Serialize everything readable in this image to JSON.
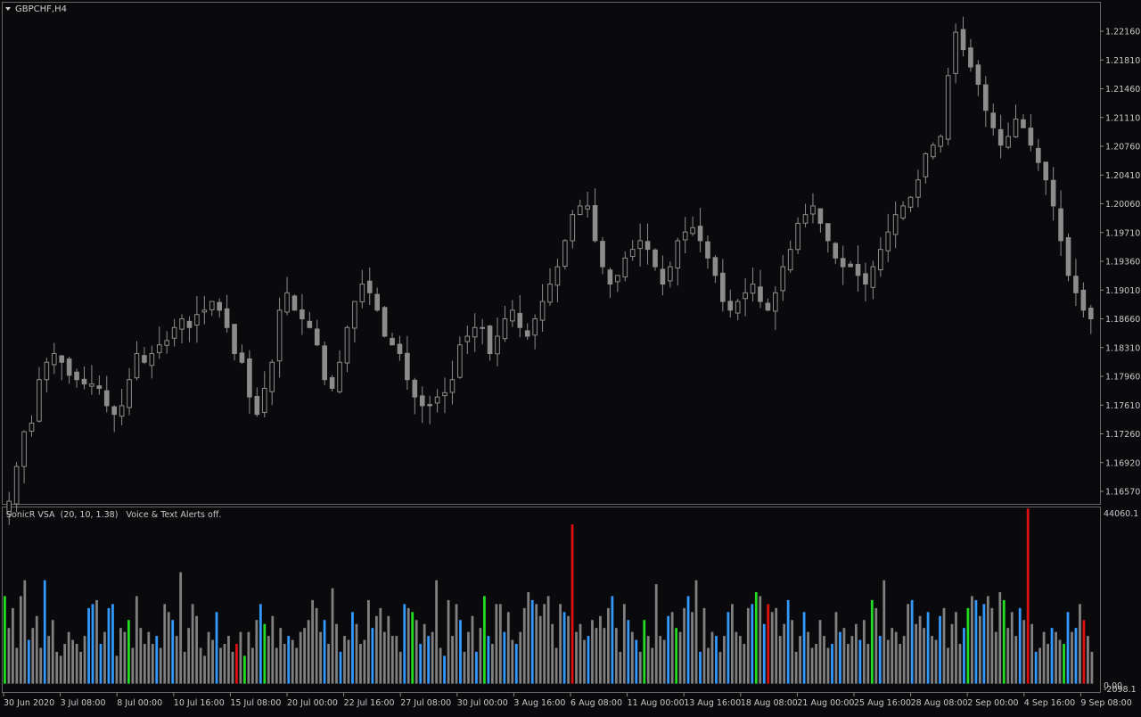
{
  "main_panel": {
    "symbol_label": "GBPCHF,H4",
    "price_ticks": [
      "1.22160",
      "1.21810",
      "1.21460",
      "1.21110",
      "1.20760",
      "1.20410",
      "1.20060",
      "1.19710",
      "1.19360",
      "1.19010",
      "1.18660",
      "1.18310",
      "1.17960",
      "1.17610",
      "1.17260",
      "1.16920",
      "1.16570"
    ]
  },
  "sub_panel": {
    "indicator_label": "SonicR VSA  (20, 10, 1.38)   Voice & Text Alerts off.",
    "max_label": "44060.1",
    "min_label": "0.00",
    "min_label_overlap": "-2098.1"
  },
  "time_axis_labels": [
    "30 Jun 2020",
    "3 Jul 08:00",
    "8 Jul 00:00",
    "10 Jul 16:00",
    "15 Jul 08:00",
    "20 Jul 00:00",
    "22 Jul 16:00",
    "27 Jul 08:00",
    "30 Jul 00:00",
    "3 Aug 16:00",
    "6 Aug 08:00",
    "11 Aug 00:00",
    "13 Aug 16:00",
    "18 Aug 08:00",
    "21 Aug 00:00",
    "25 Aug 16:00",
    "28 Aug 08:00",
    "2 Sep 00:00",
    "4 Sep 16:00",
    "9 Sep 08:00"
  ],
  "colors": {
    "background": "#0a0a0d",
    "grid": "#555555",
    "candle": "#8c8c8c",
    "text": "#c8c8c8",
    "vsa_neutral": "#808080",
    "vsa_blue": "#3399ff",
    "vsa_green": "#22dd22",
    "vsa_red": "#e01010"
  },
  "chart_data": [
    {
      "type": "line",
      "series": [
        {
          "name": "GBPCHF,H4",
          "values": [
            1.166,
            1.17,
            1.174,
            1.175,
            1.18,
            1.182,
            1.183,
            1.182,
            1.1805,
            1.18,
            1.1795,
            1.1795,
            1.179,
            1.177,
            1.176,
            1.177,
            1.18,
            1.183,
            1.182,
            1.183,
            1.184,
            1.1845,
            1.186,
            1.187,
            1.186,
            1.1875,
            1.188,
            1.189,
            1.188,
            1.186,
            1.183,
            1.182,
            1.178,
            1.176,
            1.179,
            1.182,
            1.188,
            1.19,
            1.188,
            1.187,
            1.186,
            1.184,
            1.18,
            1.179,
            1.182,
            1.186,
            1.189,
            1.191,
            1.19,
            1.188,
            1.185,
            1.184,
            1.183,
            1.18,
            1.178,
            1.177,
            1.177,
            1.178,
            1.1785,
            1.18,
            1.184,
            1.185,
            1.186,
            1.186,
            1.183,
            1.185,
            1.187,
            1.188,
            1.186,
            1.185,
            1.187,
            1.189,
            1.191,
            1.193,
            1.196,
            1.199,
            1.2,
            1.2,
            1.196,
            1.193,
            1.191,
            1.192,
            1.194,
            1.195,
            1.196,
            1.195,
            1.193,
            1.191,
            1.193,
            1.196,
            1.197,
            1.1975,
            1.196,
            1.194,
            1.192,
            1.189,
            1.188,
            1.189,
            1.19,
            1.191,
            1.189,
            1.188,
            1.19,
            1.193,
            1.195,
            1.198,
            1.199,
            1.2,
            1.198,
            1.196,
            1.194,
            1.193,
            1.193,
            1.192,
            1.191,
            1.193,
            1.195,
            1.197,
            1.199,
            1.2,
            1.201,
            1.203,
            1.206,
            1.207,
            1.208,
            1.215,
            1.22,
            1.218,
            1.216,
            1.214,
            1.211,
            1.209,
            1.207,
            1.208,
            1.21,
            1.209,
            1.207,
            1.205,
            1.203,
            1.2,
            1.196,
            1.192,
            1.19,
            1.188,
            1.187
          ]
        }
      ],
      "ylim": [
        1.1657,
        1.2234
      ]
    },
    {
      "type": "bar",
      "title": "SonicR VSA  (20, 10, 1.38)   Voice & Text Alerts off.",
      "ylim": [
        -2098.1,
        44060.1
      ],
      "series": [
        {
          "name": "SonicR VSA",
          "values": [
            22000,
            14000,
            19000,
            9000,
            22000,
            26000,
            11000,
            14000,
            17000,
            9000,
            26000,
            12000,
            16000,
            8000,
            7000,
            10000,
            13000,
            11000,
            10000,
            8000,
            12000,
            19000,
            20000,
            21000,
            10000,
            13000,
            19000,
            20000,
            7000,
            14000,
            13000,
            16000,
            9000,
            22000,
            14000,
            10000,
            13000,
            10000,
            12000,
            9000,
            20000,
            18000,
            16000,
            12000,
            28000,
            8000,
            14000,
            20000,
            17000,
            9000,
            7000,
            13000,
            11000,
            18000,
            9000,
            10000,
            12000,
            8000,
            10000,
            13000,
            7000,
            13000,
            9000,
            16000,
            20000,
            15000,
            12000,
            17000,
            9000,
            14000,
            10000,
            12000,
            11000,
            9000,
            13000,
            14000,
            16000,
            21000,
            19000,
            13000,
            16000,
            10000,
            24000,
            15000,
            8000,
            12000,
            11000,
            18000,
            15000,
            10000,
            11000,
            21000,
            14000,
            17000,
            19000,
            13000,
            17000,
            12000,
            12000,
            8000,
            20000,
            19000,
            18000,
            16000,
            10000,
            15000,
            12000,
            13000,
            26000,
            9000,
            7000,
            21000,
            12000,
            20000,
            16000,
            8000,
            13000,
            17000,
            8000,
            14000,
            22000,
            12000,
            10000,
            20000,
            20000,
            13000,
            18000,
            11000,
            10000,
            13000,
            19000,
            23000,
            21000,
            20000,
            17000,
            20000,
            22000,
            15000,
            9000,
            20000,
            18000,
            17000,
            10000,
            13000,
            15000,
            11000,
            12000,
            16000,
            14000,
            17000,
            14000,
            19000,
            22000,
            14000,
            8000,
            20000,
            16000,
            13000,
            11000,
            8000,
            16000,
            12000,
            9000,
            25000,
            12000,
            11000,
            17000,
            18000,
            14000,
            13000,
            19000,
            22000,
            18000,
            26000,
            8000,
            19000,
            9000,
            13000,
            12000,
            8000,
            12000,
            18000,
            20000,
            13000,
            12000,
            10000,
            19000,
            20000,
            23000,
            22000,
            15000,
            20000,
            18000,
            19000,
            12000,
            15000,
            21000,
            16000,
            8000,
            12000,
            18000,
            13000,
            9000,
            10000,
            16000,
            12000,
            9000,
            10000,
            18000,
            13000,
            14000,
            10000,
            12000,
            15000,
            11000,
            16000,
            10000,
            21000,
            19000,
            12000,
            26000,
            11000,
            14000,
            13000,
            10000,
            12000,
            20000,
            21000,
            15000,
            17000,
            14000,
            18000,
            12000,
            11000,
            17000,
            19000,
            9000,
            15000,
            18000,
            10000,
            14000,
            19000,
            22000,
            21000,
            17000,
            20000,
            22000,
            19000,
            13000,
            23000,
            21000,
            14000,
            18000,
            12000,
            19000,
            16000,
            17000,
            15000,
            8000,
            9000,
            13000,
            10000,
            14000,
            13000,
            11000,
            10000,
            18000,
            13000,
            14000,
            20000,
            16000,
            12000,
            8000
          ]
        }
      ]
    }
  ]
}
